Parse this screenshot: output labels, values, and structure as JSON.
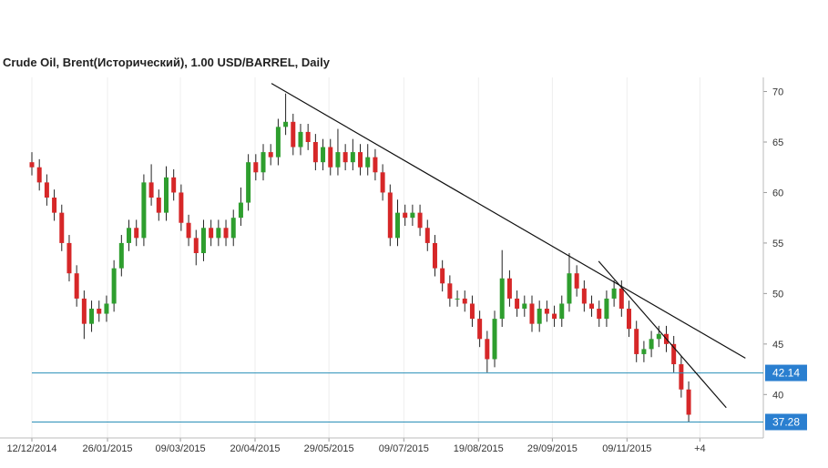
{
  "chart_data": {
    "type": "candlestick",
    "title": "Crude Oil, Brent(Исторический), 1.00 USD/BARREL, Daily",
    "x": [
      0,
      3,
      6,
      9,
      12,
      15,
      18,
      21,
      24,
      27,
      30,
      33,
      36,
      39,
      42,
      45,
      48,
      51,
      54,
      57,
      60,
      63,
      66,
      69,
      72,
      75,
      78,
      81,
      84,
      87,
      90,
      93,
      96,
      99,
      102,
      105,
      108,
      111,
      114,
      117,
      120,
      123,
      126,
      129,
      132,
      135,
      138,
      141,
      144,
      147,
      150,
      153,
      156,
      159,
      162,
      165,
      168,
      171,
      174,
      177,
      180,
      183,
      186,
      189,
      192,
      195,
      198,
      201,
      204,
      207,
      210,
      213,
      216,
      219,
      222,
      225,
      228,
      231,
      234,
      237,
      240,
      243,
      246,
      249,
      252,
      255,
      258,
      261,
      264
    ],
    "open": [
      63.0,
      62.5,
      61.0,
      59.5,
      58.0,
      55.0,
      52.0,
      49.5,
      47.0,
      48.5,
      48.0,
      49.0,
      52.5,
      55.0,
      56.5,
      55.5,
      61.0,
      59.5,
      58.0,
      61.5,
      60.0,
      57.0,
      55.5,
      54.0,
      56.5,
      55.5,
      56.5,
      55.5,
      57.5,
      59.0,
      63.0,
      62.0,
      64.0,
      63.5,
      66.5,
      67.0,
      64.5,
      66.0,
      65.0,
      63.0,
      64.5,
      62.5,
      64.0,
      63.0,
      64.0,
      62.5,
      63.5,
      62.0,
      60.0,
      55.5,
      58.0,
      57.5,
      58.0,
      56.5,
      55.0,
      52.5,
      51.0,
      49.5,
      49.5,
      49.0,
      47.5,
      45.5,
      43.5,
      47.5,
      51.5,
      49.5,
      48.5,
      49.0,
      47.0,
      48.5,
      48.0,
      47.5,
      49.0,
      52.0,
      50.5,
      49.0,
      48.5,
      47.5,
      49.5,
      50.5,
      48.5,
      46.5,
      44.0,
      44.5,
      45.5,
      46.0,
      45.0,
      43.0,
      40.5
    ],
    "high": [
      64.0,
      63.3,
      61.8,
      60.3,
      58.8,
      55.8,
      52.8,
      50.3,
      49.3,
      49.3,
      49.8,
      53.3,
      55.8,
      57.3,
      57.3,
      61.8,
      62.8,
      60.3,
      62.6,
      62.3,
      60.8,
      57.8,
      56.3,
      57.3,
      57.3,
      57.3,
      57.3,
      58.3,
      60.5,
      63.8,
      63.8,
      64.8,
      64.8,
      67.3,
      69.8,
      67.8,
      66.8,
      66.8,
      65.8,
      65.3,
      65.3,
      66.3,
      64.8,
      65.3,
      64.8,
      64.8,
      64.3,
      62.8,
      60.8,
      59.3,
      58.8,
      58.8,
      58.8,
      57.3,
      55.8,
      53.3,
      51.8,
      50.3,
      50.3,
      49.8,
      48.3,
      46.3,
      48.3,
      54.3,
      52.3,
      50.3,
      49.8,
      49.8,
      49.3,
      49.3,
      48.8,
      49.8,
      54.0,
      52.8,
      51.3,
      49.8,
      49.3,
      50.3,
      51.3,
      51.3,
      49.3,
      47.3,
      45.3,
      46.3,
      46.8,
      46.8,
      45.8,
      43.8,
      41.3
    ],
    "low": [
      61.7,
      60.2,
      58.7,
      57.2,
      54.2,
      51.2,
      48.7,
      45.5,
      46.2,
      47.2,
      47.2,
      48.2,
      51.7,
      54.2,
      54.7,
      54.7,
      58.7,
      57.2,
      57.2,
      59.2,
      56.2,
      54.7,
      52.8,
      53.2,
      54.7,
      54.7,
      54.7,
      54.7,
      56.7,
      58.2,
      61.2,
      61.2,
      62.7,
      62.7,
      65.7,
      63.7,
      63.7,
      64.2,
      62.2,
      62.2,
      61.7,
      61.7,
      62.2,
      62.2,
      61.7,
      61.7,
      61.2,
      59.2,
      54.7,
      54.7,
      56.7,
      56.7,
      55.7,
      54.2,
      51.7,
      50.2,
      48.7,
      48.7,
      48.2,
      46.7,
      44.7,
      42.2,
      42.7,
      46.7,
      48.7,
      47.7,
      47.7,
      46.2,
      46.2,
      47.2,
      46.7,
      46.7,
      48.2,
      49.7,
      48.2,
      47.7,
      46.7,
      46.7,
      48.7,
      47.7,
      45.7,
      43.2,
      43.2,
      43.7,
      44.7,
      44.2,
      42.2,
      39.7,
      37.3
    ],
    "close": [
      62.5,
      61.0,
      59.5,
      58.0,
      55.0,
      52.0,
      49.5,
      47.0,
      48.5,
      48.0,
      49.0,
      52.5,
      55.0,
      56.5,
      55.5,
      61.0,
      59.5,
      58.0,
      61.5,
      60.0,
      57.0,
      55.5,
      54.0,
      56.5,
      55.5,
      56.5,
      55.5,
      57.5,
      59.0,
      63.0,
      62.0,
      64.0,
      63.5,
      66.5,
      67.0,
      64.5,
      66.0,
      65.0,
      63.0,
      64.5,
      62.5,
      64.0,
      63.0,
      64.0,
      62.5,
      63.5,
      62.0,
      60.0,
      55.5,
      58.0,
      57.5,
      58.0,
      56.5,
      55.0,
      52.5,
      51.0,
      49.5,
      49.5,
      49.0,
      47.5,
      45.5,
      43.5,
      47.5,
      51.5,
      49.5,
      48.5,
      49.0,
      47.0,
      48.5,
      48.0,
      47.5,
      49.0,
      52.0,
      50.5,
      49.0,
      48.5,
      47.5,
      49.5,
      50.5,
      48.5,
      46.5,
      44.0,
      44.5,
      45.5,
      46.0,
      45.0,
      43.0,
      40.5,
      38.0
    ],
    "up_color": "#2e9e2e",
    "down_color": "#d62728",
    "xlim": [
      0,
      294
    ],
    "xticks": [
      {
        "value": 0,
        "label": "12/12/2014"
      },
      {
        "value": 30.4,
        "label": "26/01/2015"
      },
      {
        "value": 59.7,
        "label": "09/03/2015"
      },
      {
        "value": 89.7,
        "label": "20/04/2015"
      },
      {
        "value": 119.4,
        "label": "29/05/2015"
      },
      {
        "value": 149.5,
        "label": "09/07/2015"
      },
      {
        "value": 179.5,
        "label": "19/08/2015"
      },
      {
        "value": 209.2,
        "label": "29/09/2015"
      },
      {
        "value": 239.2,
        "label": "09/11/2015"
      },
      {
        "value": 268.5,
        "label": "+4"
      }
    ],
    "ylim": [
      35.7,
      71.4
    ],
    "yticks": [
      40,
      45,
      50,
      55,
      60,
      65,
      70
    ],
    "grid": "x",
    "hlines": [
      42.14,
      37.28
    ],
    "trendlines": [
      {
        "x": [
          96.3,
          286.8
        ],
        "y": [
          70.8,
          43.6
        ]
      },
      {
        "x": [
          227.8,
          279.1
        ],
        "y": [
          53.2,
          38.7
        ]
      }
    ]
  }
}
